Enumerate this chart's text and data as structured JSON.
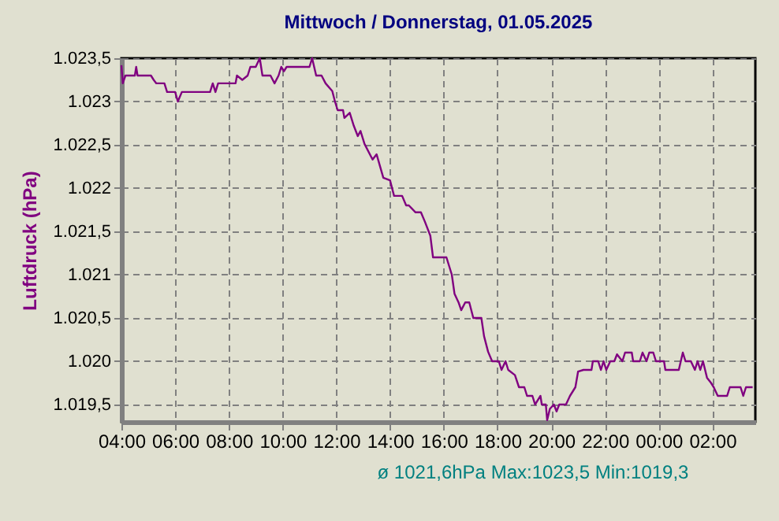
{
  "chart_data": {
    "type": "line",
    "title": "Mittwoch / Donnerstag, 01.05.2025",
    "ylabel": "Luftdruck (hPa)",
    "annotations": [
      "ø 1021,6hPa  Max:1023,5  Min:1019,3"
    ],
    "x": [
      "2025-04-30T04:00",
      "2025-04-30T04:03",
      "2025-04-30T04:09",
      "2025-04-30T04:30",
      "2025-04-30T04:33",
      "2025-04-30T04:36",
      "2025-04-30T05:06",
      "2025-04-30T05:12",
      "2025-04-30T05:18",
      "2025-04-30T05:36",
      "2025-04-30T05:42",
      "2025-04-30T06:00",
      "2025-04-30T06:06",
      "2025-04-30T06:15",
      "2025-04-30T07:18",
      "2025-04-30T07:24",
      "2025-04-30T07:30",
      "2025-04-30T07:36",
      "2025-04-30T08:15",
      "2025-04-30T08:18",
      "2025-04-30T08:30",
      "2025-04-30T08:42",
      "2025-04-30T08:48",
      "2025-04-30T09:00",
      "2025-04-30T09:09",
      "2025-04-30T09:15",
      "2025-04-30T09:33",
      "2025-04-30T09:42",
      "2025-04-30T09:51",
      "2025-04-30T09:57",
      "2025-04-30T10:03",
      "2025-04-30T10:09",
      "2025-04-30T11:00",
      "2025-04-30T11:06",
      "2025-04-30T11:15",
      "2025-04-30T11:27",
      "2025-04-30T11:36",
      "2025-04-30T11:51",
      "2025-04-30T11:57",
      "2025-04-30T12:03",
      "2025-04-30T12:15",
      "2025-04-30T12:18",
      "2025-04-30T12:30",
      "2025-04-30T12:39",
      "2025-04-30T12:48",
      "2025-04-30T12:54",
      "2025-04-30T13:03",
      "2025-04-30T13:21",
      "2025-04-30T13:30",
      "2025-04-30T13:45",
      "2025-04-30T14:00",
      "2025-04-30T14:09",
      "2025-04-30T14:27",
      "2025-04-30T14:36",
      "2025-04-30T14:42",
      "2025-04-30T14:57",
      "2025-04-30T15:09",
      "2025-04-30T15:18",
      "2025-04-30T15:30",
      "2025-04-30T15:36",
      "2025-04-30T15:48",
      "2025-04-30T16:06",
      "2025-04-30T16:18",
      "2025-04-30T16:24",
      "2025-04-30T16:33",
      "2025-04-30T16:39",
      "2025-04-30T16:48",
      "2025-04-30T16:57",
      "2025-04-30T17:06",
      "2025-04-30T17:24",
      "2025-04-30T17:30",
      "2025-04-30T17:39",
      "2025-04-30T17:48",
      "2025-04-30T18:03",
      "2025-04-30T18:09",
      "2025-04-30T18:18",
      "2025-04-30T18:24",
      "2025-04-30T18:39",
      "2025-04-30T18:48",
      "2025-04-30T19:00",
      "2025-04-30T19:06",
      "2025-04-30T19:18",
      "2025-04-30T19:24",
      "2025-04-30T19:36",
      "2025-04-30T19:39",
      "2025-04-30T19:48",
      "2025-04-30T19:51",
      "2025-04-30T19:57",
      "2025-04-30T20:06",
      "2025-04-30T20:12",
      "2025-04-30T20:18",
      "2025-04-30T20:33",
      "2025-04-30T20:42",
      "2025-04-30T20:54",
      "2025-04-30T21:00",
      "2025-04-30T21:12",
      "2025-04-30T21:30",
      "2025-04-30T21:33",
      "2025-04-30T21:45",
      "2025-04-30T21:51",
      "2025-04-30T21:57",
      "2025-04-30T22:03",
      "2025-04-30T22:12",
      "2025-04-30T22:21",
      "2025-04-30T22:27",
      "2025-04-30T22:39",
      "2025-04-30T22:45",
      "2025-04-30T23:00",
      "2025-04-30T23:03",
      "2025-04-30T23:18",
      "2025-04-30T23:24",
      "2025-04-30T23:33",
      "2025-04-30T23:39",
      "2025-04-30T23:48",
      "2025-04-30T23:54",
      "2025-05-01T00:12",
      "2025-05-01T00:15",
      "2025-05-01T00:45",
      "2025-05-01T00:54",
      "2025-05-01T01:00",
      "2025-05-01T01:12",
      "2025-05-01T01:21",
      "2025-05-01T01:27",
      "2025-05-01T01:33",
      "2025-05-01T01:39",
      "2025-05-01T01:48",
      "2025-05-01T01:57",
      "2025-05-01T02:03",
      "2025-05-01T02:12",
      "2025-05-01T02:33",
      "2025-05-01T02:39",
      "2025-05-01T03:03",
      "2025-05-01T03:09",
      "2025-05-01T03:15",
      "2025-05-01T03:30"
    ],
    "series": [
      {
        "color": "#800080",
        "values": [
          1023.42,
          1023.21,
          1023.3,
          1023.3,
          1023.4,
          1023.3,
          1023.3,
          1023.25,
          1023.21,
          1023.21,
          1023.11,
          1023.11,
          1023.0,
          1023.11,
          1023.11,
          1023.21,
          1023.11,
          1023.21,
          1023.21,
          1023.3,
          1023.25,
          1023.3,
          1023.4,
          1023.4,
          1023.5,
          1023.3,
          1023.3,
          1023.21,
          1023.3,
          1023.4,
          1023.35,
          1023.4,
          1023.4,
          1023.5,
          1023.3,
          1023.3,
          1023.21,
          1023.12,
          1023.0,
          1022.9,
          1022.9,
          1022.81,
          1022.87,
          1022.72,
          1022.6,
          1022.66,
          1022.51,
          1022.33,
          1022.39,
          1022.12,
          1022.09,
          1021.91,
          1021.91,
          1021.8,
          1021.8,
          1021.72,
          1021.72,
          1021.61,
          1021.45,
          1021.2,
          1021.2,
          1021.2,
          1021.0,
          1020.78,
          1020.68,
          1020.59,
          1020.68,
          1020.68,
          1020.5,
          1020.5,
          1020.29,
          1020.11,
          1020.0,
          1020.0,
          1019.9,
          1020.0,
          1019.9,
          1019.84,
          1019.7,
          1019.7,
          1019.6,
          1019.6,
          1019.5,
          1019.6,
          1019.5,
          1019.5,
          1019.32,
          1019.45,
          1019.5,
          1019.42,
          1019.5,
          1019.5,
          1019.6,
          1019.7,
          1019.88,
          1019.9,
          1019.9,
          1020.0,
          1020.0,
          1019.9,
          1020.0,
          1019.9,
          1020.0,
          1020.0,
          1020.08,
          1020.0,
          1020.1,
          1020.1,
          1020.0,
          1020.0,
          1020.1,
          1020.0,
          1020.1,
          1020.1,
          1020.0,
          1020.0,
          1019.9,
          1019.9,
          1020.1,
          1020.0,
          1020.0,
          1019.9,
          1020.0,
          1019.9,
          1020.0,
          1019.81,
          1019.75,
          1019.7,
          1019.6,
          1019.6,
          1019.7,
          1019.7,
          1019.6,
          1019.7,
          1019.7
        ]
      }
    ],
    "xlim": [
      "2025-04-30T04:00",
      "2025-05-01T03:36"
    ],
    "ylim": [
      1019.3,
      1023.5
    ],
    "xticks": [
      {
        "value": "2025-04-30T04:00",
        "label": "04:00"
      },
      {
        "value": "2025-04-30T06:00",
        "label": "06:00"
      },
      {
        "value": "2025-04-30T08:00",
        "label": "08:00"
      },
      {
        "value": "2025-04-30T10:00",
        "label": "10:00"
      },
      {
        "value": "2025-04-30T12:00",
        "label": "12:00"
      },
      {
        "value": "2025-04-30T14:00",
        "label": "14:00"
      },
      {
        "value": "2025-04-30T16:00",
        "label": "16:00"
      },
      {
        "value": "2025-04-30T18:00",
        "label": "18:00"
      },
      {
        "value": "2025-04-30T20:00",
        "label": "20:00"
      },
      {
        "value": "2025-04-30T22:00",
        "label": "22:00"
      },
      {
        "value": "2025-05-01T00:00",
        "label": "00:00"
      },
      {
        "value": "2025-05-01T02:00",
        "label": "02:00"
      }
    ],
    "yticks": [
      {
        "value": 1019.5,
        "label": "1.019,5"
      },
      {
        "value": 1020,
        "label": "1.020"
      },
      {
        "value": 1020.5,
        "label": "1.020,5"
      },
      {
        "value": 1021,
        "label": "1.021"
      },
      {
        "value": 1021.5,
        "label": "1.021,5"
      },
      {
        "value": 1022,
        "label": "1.022"
      },
      {
        "value": 1022.5,
        "label": "1.022,5"
      },
      {
        "value": 1023,
        "label": "1.023"
      },
      {
        "value": 1023.5,
        "label": "1.023,5"
      }
    ],
    "grid": true,
    "marker": "none",
    "line_style": "solid"
  }
}
